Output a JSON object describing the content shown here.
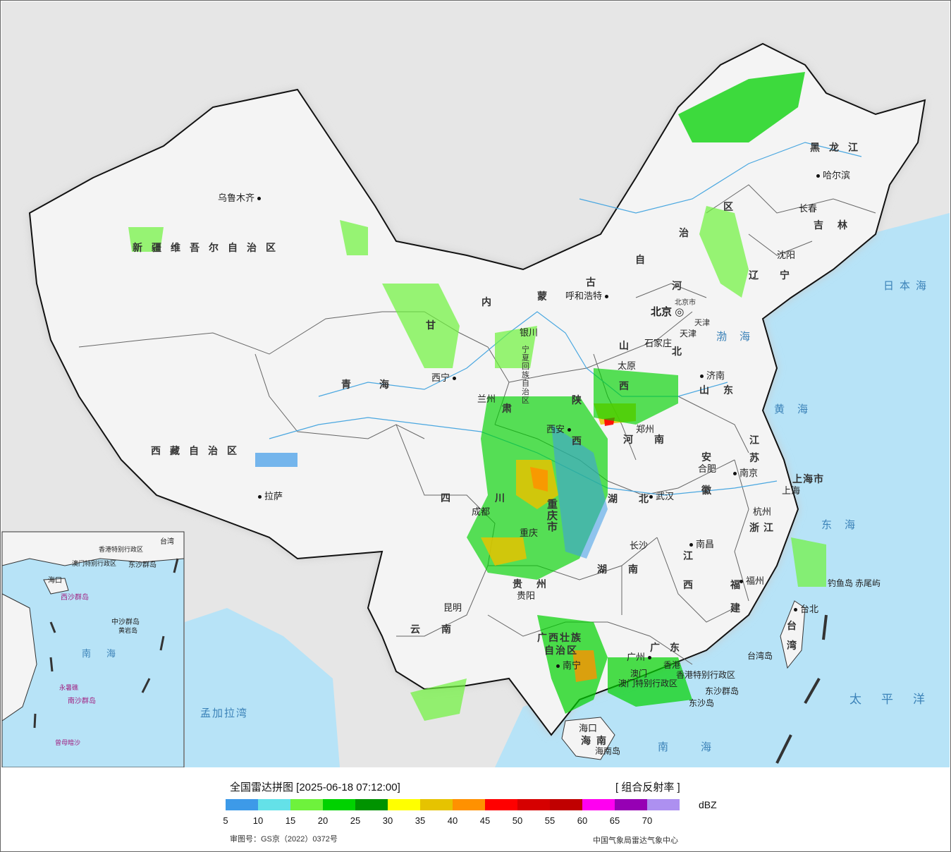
{
  "map": {
    "provinces": [
      {
        "id": "xinjiang",
        "text": "新疆维吾尔自治区"
      },
      {
        "id": "xizang",
        "text": "西藏自治区"
      },
      {
        "id": "qinghai",
        "text": "青海"
      },
      {
        "id": "gansu",
        "text": "甘"
      },
      {
        "id": "gansu2",
        "text": "肃"
      },
      {
        "id": "neimenggu1",
        "text": "内"
      },
      {
        "id": "neimenggu2",
        "text": "蒙"
      },
      {
        "id": "neimenggu3",
        "text": "古"
      },
      {
        "id": "neimenggu4",
        "text": "自"
      },
      {
        "id": "neimenggu5",
        "text": "治"
      },
      {
        "id": "neimenggu6",
        "text": "区"
      },
      {
        "id": "heilongjiang",
        "text": "黑龙江"
      },
      {
        "id": "jilin",
        "text": "吉林"
      },
      {
        "id": "liaoning",
        "text": "辽宁"
      },
      {
        "id": "hebei1",
        "text": "河"
      },
      {
        "id": "hebei2",
        "text": "北"
      },
      {
        "id": "shanxi1",
        "text": "山"
      },
      {
        "id": "shanxi2",
        "text": "西"
      },
      {
        "id": "shandong",
        "text": "山东"
      },
      {
        "id": "henan",
        "text": "河南"
      },
      {
        "id": "shaanxi1",
        "text": "陕"
      },
      {
        "id": "shaanxi2",
        "text": "西"
      },
      {
        "id": "ningxia",
        "text": "宁夏回族自治区"
      },
      {
        "id": "jiangsu1",
        "text": "江"
      },
      {
        "id": "jiangsu2",
        "text": "苏"
      },
      {
        "id": "anhui1",
        "text": "安"
      },
      {
        "id": "anhui2",
        "text": "徽"
      },
      {
        "id": "hubei",
        "text": "湖北"
      },
      {
        "id": "sichuan1",
        "text": "四"
      },
      {
        "id": "sichuan2",
        "text": "川"
      },
      {
        "id": "chongqing",
        "text": "重庆市"
      },
      {
        "id": "zhejiang",
        "text": "浙江"
      },
      {
        "id": "hunan",
        "text": "湖南"
      },
      {
        "id": "jiangxi1",
        "text": "江"
      },
      {
        "id": "jiangxi2",
        "text": "西"
      },
      {
        "id": "guizhou",
        "text": "贵州"
      },
      {
        "id": "fujian1",
        "text": "福"
      },
      {
        "id": "fujian2",
        "text": "建"
      },
      {
        "id": "yunnan",
        "text": "云南"
      },
      {
        "id": "guangxi1",
        "text": "广西壮族"
      },
      {
        "id": "guangxi2",
        "text": "自治区"
      },
      {
        "id": "guangdong",
        "text": "广东"
      },
      {
        "id": "taiwan",
        "text": "台湾"
      },
      {
        "id": "hainan",
        "text": "海南"
      },
      {
        "id": "shanghai",
        "text": "上海市"
      },
      {
        "id": "tianjin",
        "text": "天津"
      },
      {
        "id": "hongkong",
        "text": "香港特别行政区"
      },
      {
        "id": "macau",
        "text": "澳门特别行政区"
      }
    ],
    "cities": [
      {
        "id": "urumqi",
        "text": "乌鲁木齐"
      },
      {
        "id": "lhasa",
        "text": "拉萨"
      },
      {
        "id": "xining",
        "text": "西宁"
      },
      {
        "id": "lanzhou",
        "text": "兰州"
      },
      {
        "id": "yinchuan",
        "text": "银川"
      },
      {
        "id": "hohhot",
        "text": "呼和浩特"
      },
      {
        "id": "beijing",
        "text": "北京"
      },
      {
        "id": "beijingcity",
        "text": "北京市"
      },
      {
        "id": "tianjincity",
        "text": "天津"
      },
      {
        "id": "shijiazhuang",
        "text": "石家庄"
      },
      {
        "id": "taiyuan",
        "text": "太原"
      },
      {
        "id": "jinan",
        "text": "济南"
      },
      {
        "id": "zhengzhou",
        "text": "郑州"
      },
      {
        "id": "xian",
        "text": "西安"
      },
      {
        "id": "hefei",
        "text": "合肥"
      },
      {
        "id": "nanjing",
        "text": "南京"
      },
      {
        "id": "shanghaicity",
        "text": "上海"
      },
      {
        "id": "hangzhou",
        "text": "杭州"
      },
      {
        "id": "wuhan",
        "text": "武汉"
      },
      {
        "id": "chengdu",
        "text": "成都"
      },
      {
        "id": "chongqingcity",
        "text": "重庆"
      },
      {
        "id": "changsha",
        "text": "长沙"
      },
      {
        "id": "nanchang",
        "text": "南昌"
      },
      {
        "id": "fuzhou",
        "text": "福州"
      },
      {
        "id": "guiyang",
        "text": "贵阳"
      },
      {
        "id": "kunming",
        "text": "昆明"
      },
      {
        "id": "nanning",
        "text": "南宁"
      },
      {
        "id": "guangzhou",
        "text": "广州"
      },
      {
        "id": "hongkongcity",
        "text": "香港"
      },
      {
        "id": "macaucity",
        "text": "澳门"
      },
      {
        "id": "haikou",
        "text": "海口"
      },
      {
        "id": "taipei",
        "text": "台北"
      },
      {
        "id": "harbin",
        "text": "哈尔滨"
      },
      {
        "id": "changchun",
        "text": "长春"
      },
      {
        "id": "shenyang",
        "text": "沈阳"
      },
      {
        "id": "diaoyudao",
        "text": "钓鱼岛"
      },
      {
        "id": "chiweiyu",
        "text": "赤尾屿"
      },
      {
        "id": "dongsha",
        "text": "东沙群岛"
      },
      {
        "id": "dongshadao",
        "text": "东沙岛"
      },
      {
        "id": "hainandao",
        "text": "海南岛"
      },
      {
        "id": "taiwandao",
        "text": "台湾岛"
      }
    ],
    "seas": [
      {
        "id": "riben",
        "text": "日本海"
      },
      {
        "id": "bohai",
        "text": "渤海"
      },
      {
        "id": "huanghai",
        "text": "黄海"
      },
      {
        "id": "donghai",
        "text": "东海"
      },
      {
        "id": "taipingyang",
        "text": "太平洋"
      },
      {
        "id": "nanhai",
        "text": "南海"
      },
      {
        "id": "mengjiala",
        "text": "孟加拉湾"
      }
    ],
    "inset": {
      "sea_label": "南海",
      "labels": [
        "海口",
        "东沙群岛",
        "西沙群岛",
        "中沙群岛",
        "南沙群岛",
        "曾母暗沙",
        "永暑礁",
        "黄岩岛",
        "台湾",
        "香港特别行政区",
        "澳门特别行政区"
      ]
    }
  },
  "legend": {
    "title": "全国雷达拼图 [2025-06-18 07:12:00]",
    "product": "[ 组合反射率 ]",
    "unit": "dBZ",
    "colors": [
      "#3d9ae8",
      "#64e1e8",
      "#6ef23c",
      "#00d200",
      "#009300",
      "#ffff00",
      "#e6c300",
      "#ff9100",
      "#ff0000",
      "#d60000",
      "#c00000",
      "#ff00f0",
      "#9600b4",
      "#ad90f0"
    ],
    "ticks": [
      "5",
      "10",
      "15",
      "20",
      "25",
      "30",
      "35",
      "40",
      "45",
      "50",
      "55",
      "60",
      "65",
      "70"
    ],
    "review_no": "审图号：GS京（2022）0372号",
    "credit": "中国气象局雷达气象中心"
  }
}
